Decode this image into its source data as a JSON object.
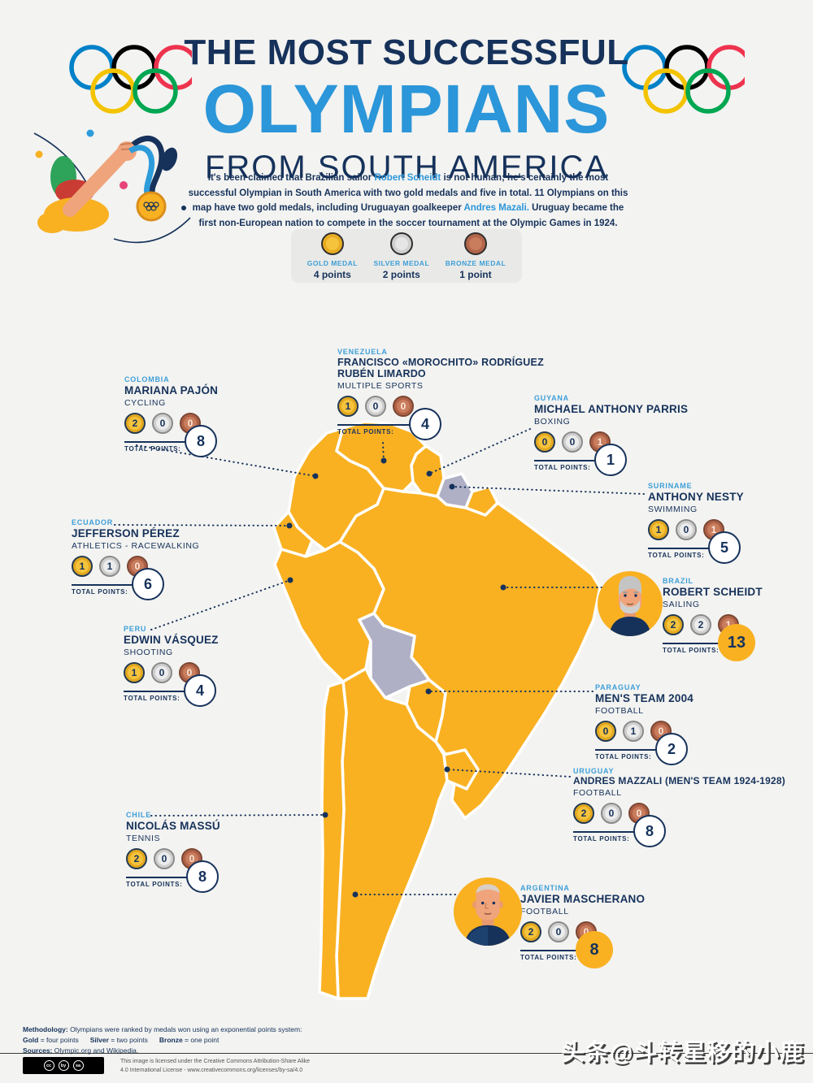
{
  "title": {
    "line1": "THE MOST SUCCESSFUL",
    "line2": "OLYMPIANS",
    "line3": "FROM SOUTH AMERICA"
  },
  "intro": {
    "pre": "It's been claimed that Brazilian sailor ",
    "link1": "Robert Scheidt",
    "mid": " is not human; he's certainly the most successful Olympian in South America with two gold medals and five in total. 11 Olympians on this map have two gold medals, including Uruguayan goalkeeper ",
    "link2": "Andres Mazali.",
    "post": " Uruguay became the first non-European nation to compete in the soccer tournament at the Olympic Games in 1924."
  },
  "legend": [
    {
      "type": "gold",
      "label": "GOLD MEDAL",
      "points": "4 points"
    },
    {
      "type": "silver",
      "label": "SILVER MEDAL",
      "points": "2 points"
    },
    {
      "type": "bronze",
      "label": "BRONZE MEDAL",
      "points": "1 point"
    }
  ],
  "labels": {
    "total_points": "TOTAL POINTS:"
  },
  "athletes": [
    {
      "id": "colombia",
      "country": "COLOMBIA",
      "name": "MARIANA PAJÓN",
      "sport": "CYCLING",
      "gold": 2,
      "silver": 0,
      "bronze": 0,
      "total": 8,
      "highlight": false,
      "avatar": null
    },
    {
      "id": "venezuela",
      "country": "VENEZUELA",
      "name": "FRANCISCO «MOROCHITO» RODRÍGUEZ\nRUBÉN LIMARDO",
      "sport": "MULTIPLE SPORTS",
      "gold": 1,
      "silver": 0,
      "bronze": 0,
      "total": 4,
      "highlight": false,
      "avatar": null
    },
    {
      "id": "guyana",
      "country": "GUYANA",
      "name": "MICHAEL ANTHONY PARRIS",
      "sport": "BOXING",
      "gold": 0,
      "silver": 0,
      "bronze": 1,
      "total": 1,
      "highlight": false,
      "avatar": null
    },
    {
      "id": "suriname",
      "country": "SURINAME",
      "name": "ANTHONY NESTY",
      "sport": "SWIMMING",
      "gold": 1,
      "silver": 0,
      "bronze": 1,
      "total": 5,
      "highlight": false,
      "avatar": null
    },
    {
      "id": "ecuador",
      "country": "ECUADOR",
      "name": "JEFFERSON PÉREZ",
      "sport": "ATHLETICS - RACEWALKING",
      "gold": 1,
      "silver": 1,
      "bronze": 0,
      "total": 6,
      "highlight": false,
      "avatar": null
    },
    {
      "id": "brazil",
      "country": "BRAZIL",
      "name": "ROBERT SCHEIDT",
      "sport": "SAILING",
      "gold": 2,
      "silver": 2,
      "bronze": 1,
      "total": 13,
      "highlight": true,
      "avatar": "scheidt"
    },
    {
      "id": "peru",
      "country": "PERU",
      "name": "EDWIN VÁSQUEZ",
      "sport": "SHOOTING",
      "gold": 1,
      "silver": 0,
      "bronze": 0,
      "total": 4,
      "highlight": false,
      "avatar": null
    },
    {
      "id": "paraguay",
      "country": "PARAGUAY",
      "name": "MEN'S TEAM 2004",
      "sport": "FOOTBALL",
      "gold": 0,
      "silver": 1,
      "bronze": 0,
      "total": 2,
      "highlight": false,
      "avatar": null
    },
    {
      "id": "uruguay",
      "country": "URUGUAY",
      "name": "ANDRES MAZZALI (MEN'S TEAM 1924-1928)",
      "sport": "FOOTBALL",
      "gold": 2,
      "silver": 0,
      "bronze": 0,
      "total": 8,
      "highlight": false,
      "avatar": null
    },
    {
      "id": "chile",
      "country": "CHILE",
      "name": "NICOLÁS MASSÚ",
      "sport": "TENNIS",
      "gold": 2,
      "silver": 0,
      "bronze": 0,
      "total": 8,
      "highlight": false,
      "avatar": null
    },
    {
      "id": "argentina",
      "country": "ARGENTINA",
      "name": "JAVIER MASCHERANO",
      "sport": "FOOTBALL",
      "gold": 2,
      "silver": 0,
      "bronze": 0,
      "total": 8,
      "highlight": true,
      "avatar": "mascherano"
    }
  ],
  "footer": {
    "methodology_label": "Methodology:",
    "methodology_text": " Olympians were ranked by medals won using an exponential points system:",
    "scoring": [
      {
        "b": "Gold",
        "t": " = four points"
      },
      {
        "b": "Silver",
        "t": " = two points"
      },
      {
        "b": "Bronze",
        "t": " = one point"
      }
    ],
    "sources_label": "Sources:",
    "sources_text": " Olympic.org and Wikipedia.",
    "cc_icons": [
      "cc",
      "by",
      "sa"
    ],
    "license_line1": "This image is licensed under the Creative Commons Attribution-Share Alike",
    "license_line2": "4.0 International License - www.creativecommons.org/licenses/by-sa/4.0"
  },
  "watermark": "头条@斗转星移的小鹿",
  "colors": {
    "navy": "#16325B",
    "title_blue": "#2B96D9",
    "light_blue": "#3D9FD8",
    "map_yellow": "#F9B122",
    "map_gray": "#AFAFC5",
    "background": "#F3F3F1"
  }
}
